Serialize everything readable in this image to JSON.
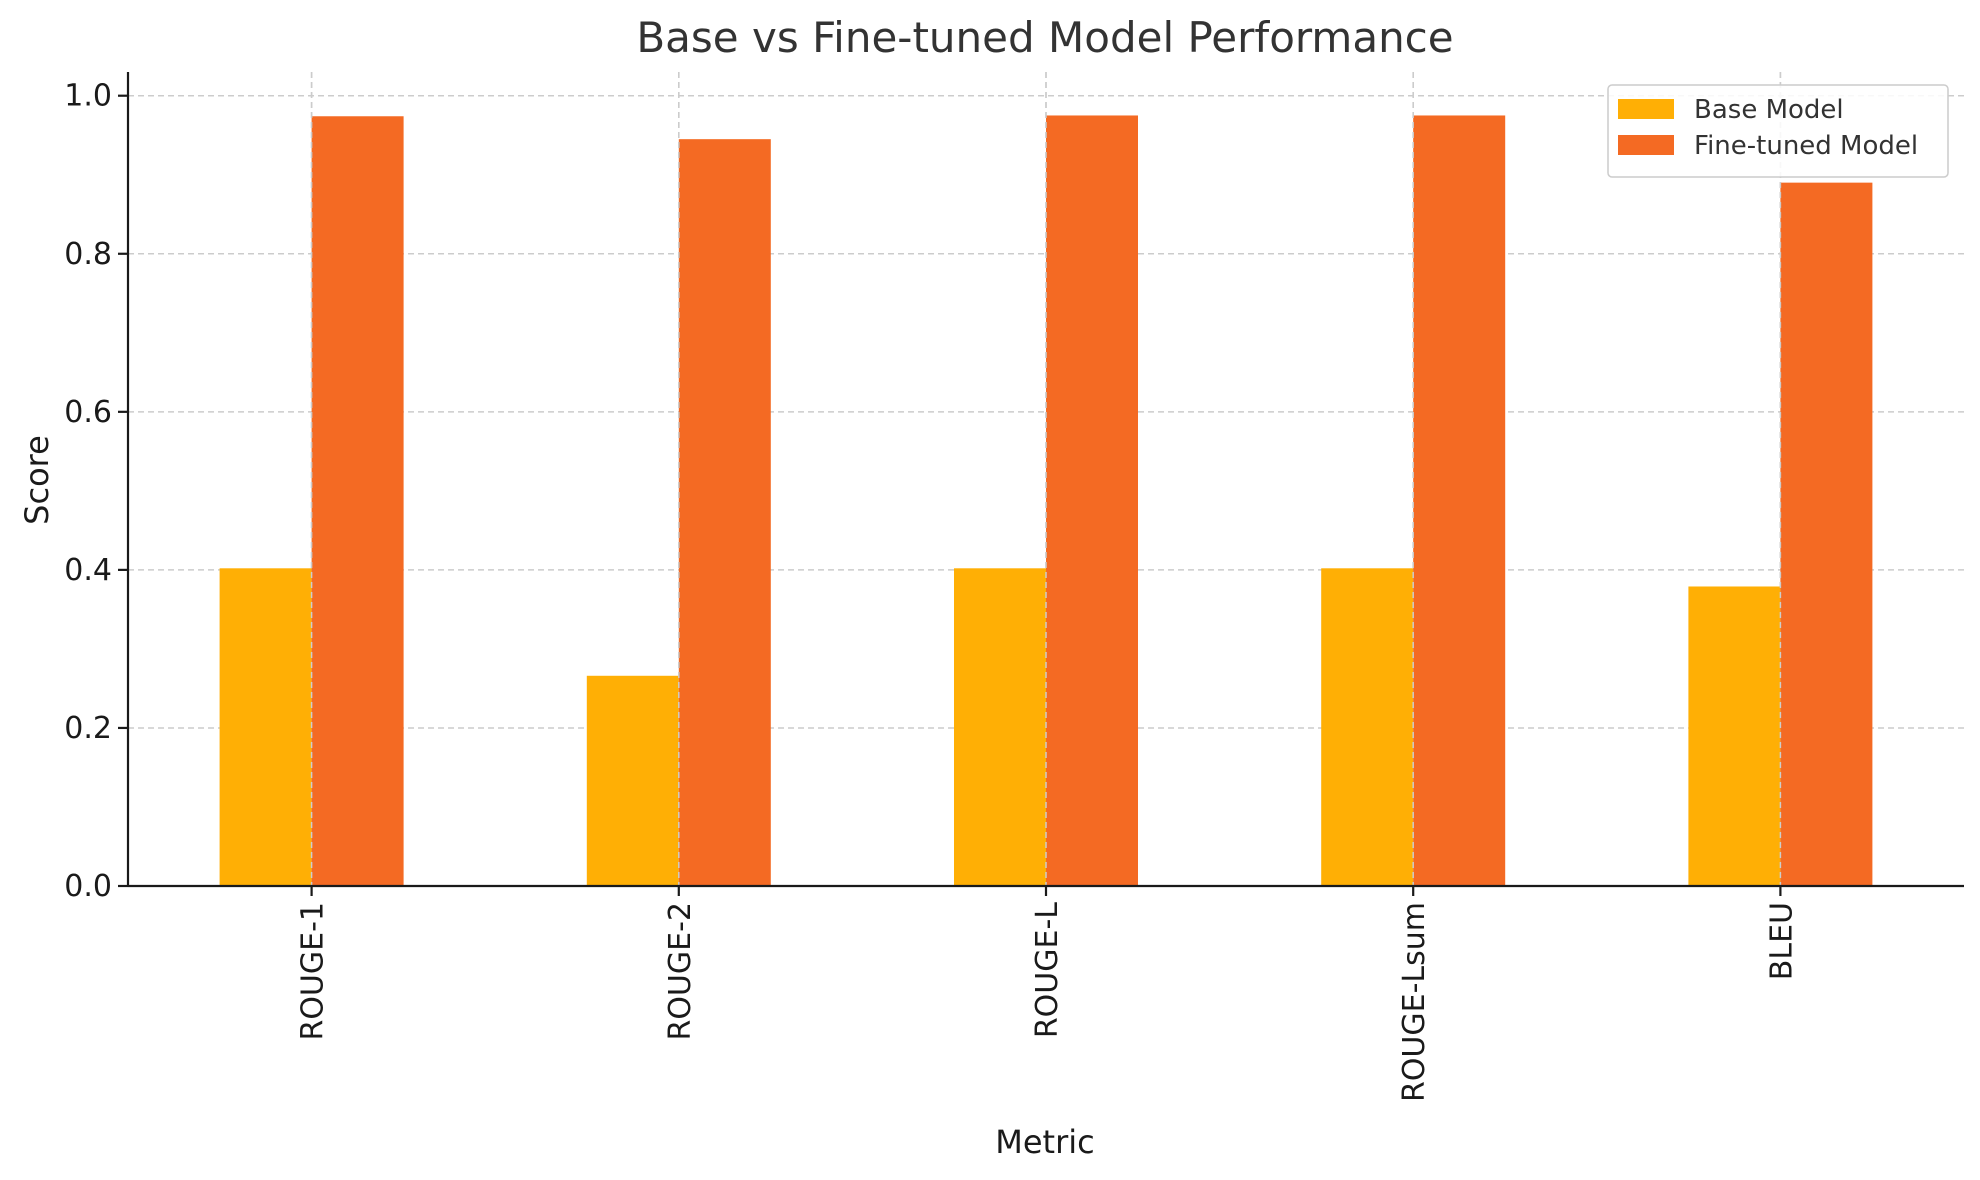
{
  "chart_data": {
    "type": "bar",
    "title": "Base vs Fine-tuned Model Performance",
    "xlabel": "Metric",
    "ylabel": "Score",
    "categories": [
      "ROUGE-1",
      "ROUGE-2",
      "ROUGE-L",
      "ROUGE-Lsum",
      "BLEU"
    ],
    "series": [
      {
        "name": "Base Model",
        "color": "#FFAF05",
        "values": [
          0.402,
          0.266,
          0.402,
          0.402,
          0.379
        ]
      },
      {
        "name": "Fine-tuned Model",
        "color": "#F46A23",
        "values": [
          0.974,
          0.945,
          0.975,
          0.975,
          0.89
        ]
      }
    ],
    "ylim": [
      0,
      1.03
    ],
    "yticks": [
      "0.0",
      "0.2",
      "0.4",
      "0.6",
      "0.8",
      "1.0"
    ],
    "grid": true,
    "legend_position": "top-right"
  }
}
